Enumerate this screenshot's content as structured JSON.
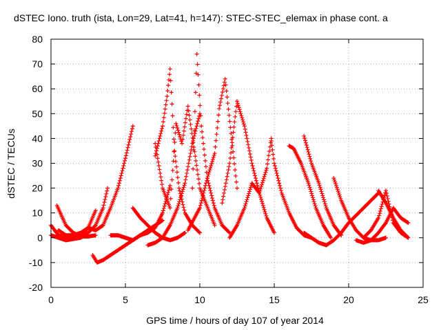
{
  "chart_data": {
    "type": "scatter",
    "title": "dSTEC Iono. truth (ista, Lon=29, Lat=41, h=147): STEC-STEC_elemax in phase cont. a",
    "xlabel": "GPS time / hours of day 107 of year 2014",
    "ylabel": "dSTEC  / TECUs",
    "xlim": [
      0,
      25
    ],
    "ylim": [
      -20,
      80
    ],
    "xticks": [
      0,
      5,
      10,
      15,
      20,
      25
    ],
    "yticks": [
      -20,
      -10,
      0,
      10,
      20,
      30,
      40,
      50,
      60,
      70,
      80
    ],
    "grid": true,
    "marker": "+",
    "color": "#ff0000",
    "series": [
      {
        "x": [
          0,
          0.5,
          1,
          1.5,
          2,
          2.5,
          3.0
        ],
        "y": [
          5,
          1,
          0,
          0,
          1,
          4,
          11
        ]
      },
      {
        "x": [
          0.4,
          1,
          1.5,
          2,
          2.5,
          3.0
        ],
        "y": [
          13,
          5,
          2,
          0.5,
          0.5,
          1
        ]
      },
      {
        "x": [
          0,
          0.5,
          1,
          1.5,
          2,
          2.5,
          3,
          3.5,
          3.8
        ],
        "y": [
          1,
          0,
          -1,
          -0.5,
          0,
          2,
          5,
          12,
          20
        ]
      },
      {
        "x": [
          2.8,
          3.1,
          3.5,
          4,
          4.5,
          5,
          5.5,
          6,
          6.5,
          7,
          7.5
        ],
        "y": [
          -7,
          -10,
          -9,
          -7,
          -5,
          -3,
          -1,
          1,
          3,
          5,
          7
        ]
      },
      {
        "x": [
          0.5,
          1,
          1.5,
          2,
          2.5,
          3,
          3.5,
          4,
          4.5,
          5,
          5.5
        ],
        "y": [
          3,
          1,
          1,
          2,
          4,
          3,
          5,
          12,
          20,
          32,
          45
        ]
      },
      {
        "x": [
          4,
          4.5,
          5,
          5.5,
          6,
          6.5,
          7,
          7.5,
          8
        ],
        "y": [
          1,
          1,
          0,
          -1,
          1,
          2,
          4,
          10,
          21
        ]
      },
      {
        "x": [
          5.5,
          6,
          6.5,
          7,
          7.5,
          8,
          8.5,
          9
        ],
        "y": [
          12,
          8,
          5,
          2,
          0,
          -1,
          0,
          2
        ]
      },
      {
        "x": [
          6.5,
          7,
          7.5,
          8,
          8.5,
          9,
          9.5,
          10
        ],
        "y": [
          -3,
          -2,
          0,
          5,
          12,
          22,
          38,
          50
        ]
      },
      {
        "x": [
          7,
          7.5,
          7.8,
          8,
          8.3,
          8.6,
          9,
          9.5,
          10
        ],
        "y": [
          33,
          45,
          57,
          68,
          35,
          20,
          10,
          5,
          2
        ]
      },
      {
        "x": [
          7,
          7.5,
          8,
          8.4,
          8.8,
          9.2,
          10,
          11
        ],
        "y": [
          38,
          20,
          12,
          46,
          38,
          53,
          20,
          5
        ]
      },
      {
        "x": [
          9.5,
          9.8,
          10.1,
          10.5,
          11,
          11.5,
          12
        ],
        "y": [
          20,
          74,
          45,
          24,
          12,
          5,
          2
        ]
      },
      {
        "x": [
          9.2,
          10,
          10.5,
          11,
          11.3,
          11.7,
          12.5
        ],
        "y": [
          3,
          12,
          24,
          34,
          52,
          64,
          20
        ]
      },
      {
        "x": [
          11.5,
          12,
          12.5,
          13,
          13.5,
          14,
          14.5,
          15
        ],
        "y": [
          14,
          30,
          55,
          45,
          30,
          18,
          8,
          2
        ]
      },
      {
        "x": [
          12,
          12.5,
          13,
          13.5,
          14,
          14.5,
          14.8
        ],
        "y": [
          0,
          5,
          12,
          22,
          18,
          28,
          40
        ]
      },
      {
        "x": [
          14.8,
          15,
          15.5,
          16,
          16.5,
          17,
          17.5
        ],
        "y": [
          39,
          30,
          18,
          10,
          4,
          1,
          0
        ]
      },
      {
        "x": [
          16,
          16.3,
          16.8,
          17.3,
          17.8,
          18.3,
          18.8
        ],
        "y": [
          37,
          36,
          30,
          22,
          12,
          5,
          0
        ]
      },
      {
        "x": [
          17,
          17.5,
          18,
          18.5,
          19,
          19.5
        ],
        "y": [
          41,
          30,
          22,
          12,
          5,
          1
        ]
      },
      {
        "x": [
          17,
          17.5,
          18,
          18.5,
          19,
          19.5,
          20,
          21,
          22
        ],
        "y": [
          2,
          0,
          -2,
          -3,
          -1,
          2,
          6,
          12,
          18
        ]
      },
      {
        "x": [
          19,
          19.5,
          20,
          20.5,
          21,
          21.5,
          22,
          22.5
        ],
        "y": [
          24,
          15,
          8,
          3,
          0,
          -1,
          -1,
          0
        ]
      },
      {
        "x": [
          21,
          21.5,
          22,
          22.5,
          23,
          23.5,
          24
        ],
        "y": [
          0,
          3,
          8,
          19,
          6,
          2,
          0
        ]
      },
      {
        "x": [
          20.5,
          21,
          21.5,
          22,
          22.5,
          23,
          23.5,
          24
        ],
        "y": [
          -1,
          -2,
          -1,
          2,
          6,
          12,
          8,
          6
        ]
      },
      {
        "x": [
          22,
          22.5,
          23,
          23.5,
          24
        ],
        "y": [
          19,
          14,
          8,
          3,
          0
        ]
      }
    ]
  }
}
